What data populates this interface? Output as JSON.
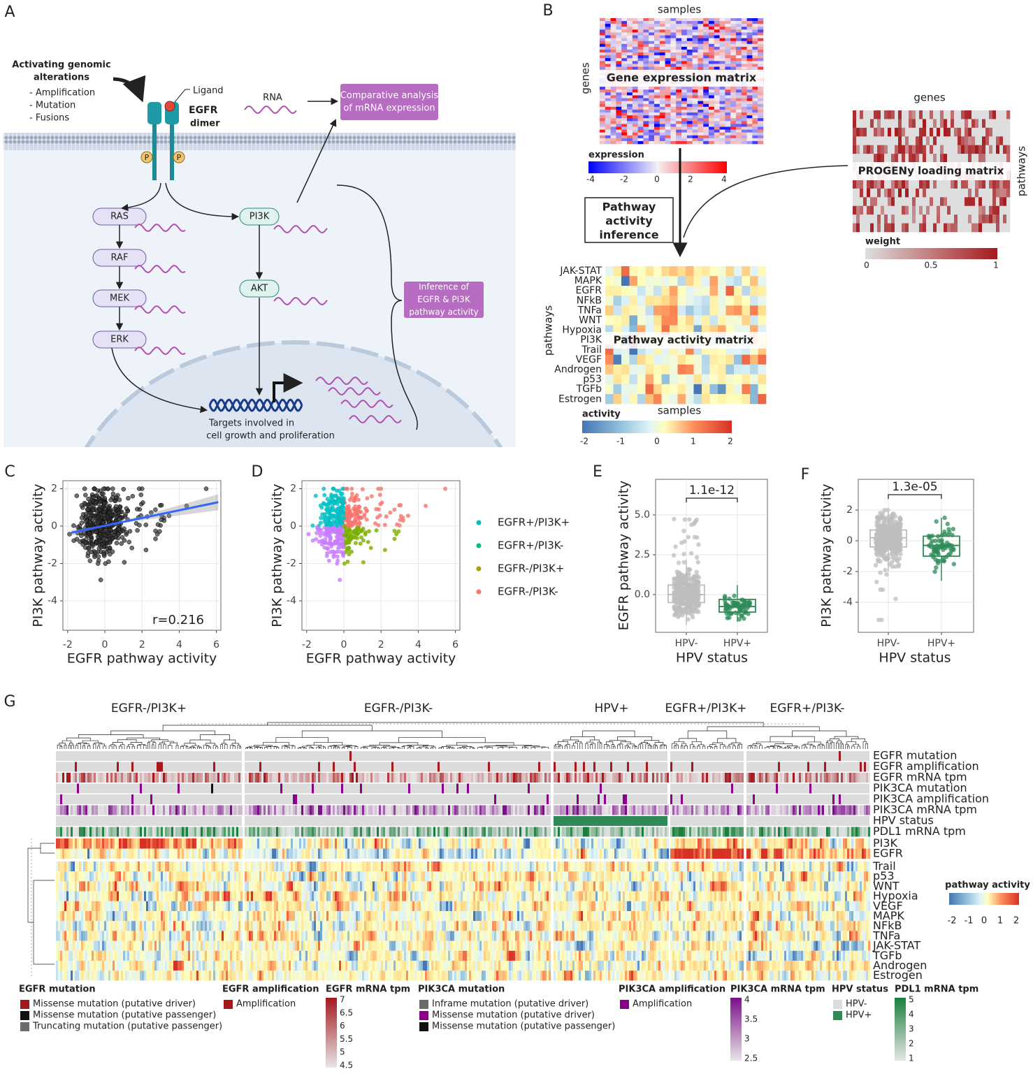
{
  "panel_a": {
    "label": "A",
    "alterations_title": [
      "Activating genomic",
      "alterations"
    ],
    "alterations": [
      "- Amplification",
      "- Mutation",
      "- Fusions"
    ],
    "ligand": "Ligand",
    "receptor": [
      "EGFR",
      "dimer"
    ],
    "phospho": [
      "P",
      "P"
    ],
    "rna": "RNA",
    "comparative_box": [
      "Comparative analysis",
      "of mRNA expression"
    ],
    "mapk_nodes": [
      "RAS",
      "RAF",
      "MEK",
      "ERK"
    ],
    "pi3k_nodes": [
      "PI3K",
      "AKT"
    ],
    "inference_box": [
      "Inference of",
      "EGFR & PI3K",
      "pathway activity"
    ],
    "targets": [
      "Targets involved in",
      "cell growth and proliferation"
    ]
  },
  "panel_b": {
    "label": "B",
    "expr_x": "samples",
    "expr_y": "genes",
    "expr_title": "Gene expression matrix",
    "expr_legend": "expression",
    "expr_ticks": [
      "-4",
      "-2",
      "0",
      "2",
      "4"
    ],
    "loading_x": "genes",
    "loading_y": "pathways",
    "loading_title": "PROGENy loading matrix",
    "weight_legend": "weight",
    "weight_ticks": [
      "0",
      "0.5",
      "1"
    ],
    "inference": [
      "Pathway",
      "activity",
      "inference"
    ],
    "pathways": [
      "JAK-STAT",
      "MAPK",
      "EGFR",
      "NFkB",
      "TNFa",
      "WNT",
      "Hypoxia",
      "PI3K",
      "Trail",
      "VEGF",
      "Androgen",
      "p53",
      "TGFb",
      "Estrogen"
    ],
    "activity_y": "pathways",
    "activity_title": "Pathway activity matrix",
    "activity_x": "samples",
    "activity_legend": "activity",
    "activity_ticks": [
      "-2",
      "-1",
      "0",
      "1",
      "2"
    ]
  },
  "panel_c": {
    "label": "C",
    "y_label": "PI3K pathway activity",
    "x_label": "EGFR pathway activity",
    "yticks": [
      "2",
      "0",
      "-2",
      "-4"
    ],
    "xticks": [
      "-2",
      "0",
      "2",
      "4",
      "6"
    ],
    "annotation": "r=0.216"
  },
  "panel_d": {
    "label": "D",
    "y_label": "PI3K pathway activity",
    "x_label": "EGFR pathway activity",
    "yticks": [
      "2",
      "0",
      "-2",
      "-4"
    ],
    "xticks": [
      "-2",
      "0",
      "2",
      "4",
      "6"
    ],
    "legend": [
      "EGFR+/PI3K+",
      "EGFR+/PI3K-",
      "EGFR-/PI3K+",
      "EGFR-/PI3K-"
    ]
  },
  "panel_e": {
    "label": "E",
    "y_label": "EGFR pathway activity",
    "yticks": [
      "5.0",
      "2.5",
      "0.0"
    ],
    "groups": [
      "HPV-",
      "HPV+"
    ],
    "x_label": "HPV status",
    "p_value": "1.1e-12"
  },
  "panel_f": {
    "label": "F",
    "y_label": "PI3K pathway activity",
    "yticks": [
      "2",
      "0",
      "-2",
      "-4"
    ],
    "groups": [
      "HPV-",
      "HPV+"
    ],
    "x_label": "HPV status",
    "p_value": "1.3e-05"
  },
  "panel_g": {
    "label": "G",
    "clusters": [
      "EGFR-/PI3K+",
      "EGFR-/PI3K-",
      "HPV+",
      "EGFR+/PI3K+",
      "EGFR+/PI3K-"
    ],
    "annotation_rows": [
      "EGFR mutation",
      "EGFR amplification",
      "EGFR mRNA tpm",
      "PIK3CA mutation",
      "PIK3CA amplification",
      "PIK3CA mRNA tpm",
      "HPV status",
      "PDL1 mRNA tpm"
    ],
    "pathway_rows": [
      "PI3K",
      "EGFR",
      "Trail",
      "p53",
      "WNT",
      "Hypoxia",
      "VEGF",
      "MAPK",
      "NFkB",
      "TNFa",
      "JAK-STAT",
      "TGFb",
      "Androgen",
      "Estrogen"
    ],
    "activity_legend": "pathway activity",
    "activity_ticks": [
      "-2",
      "-1",
      "0",
      "1",
      "2"
    ],
    "legends": [
      {
        "title": "EGFR mutation",
        "entries": [
          "Missense mutation (putative driver)",
          "Missense mutation (putative passenger)",
          "Truncating mutation (putative passenger)"
        ]
      },
      {
        "title": "EGFR amplification",
        "entries": [
          "Amplification"
        ]
      },
      {
        "title": "EGFR mRNA tpm",
        "ticks": [
          "7",
          "6.5",
          "6",
          "5.5",
          "5",
          "4.5"
        ]
      },
      {
        "title": "PIK3CA mutation",
        "entries": [
          "Inframe mutation (putative driver)",
          "Missense mutation (putative driver)",
          "Missense mutation (putative passenger)"
        ]
      },
      {
        "title": "PIK3CA amplification",
        "entries": [
          "Amplification"
        ]
      },
      {
        "title": "PIK3CA mRNA tpm",
        "ticks": [
          "4",
          "3.5",
          "3",
          "2.5"
        ]
      },
      {
        "title": "HPV status",
        "entries": [
          "HPV-",
          "HPV+"
        ]
      },
      {
        "title": "PDL1 mRNA tpm",
        "ticks": [
          "5",
          "4",
          "3",
          "2",
          "1"
        ]
      }
    ]
  }
}
